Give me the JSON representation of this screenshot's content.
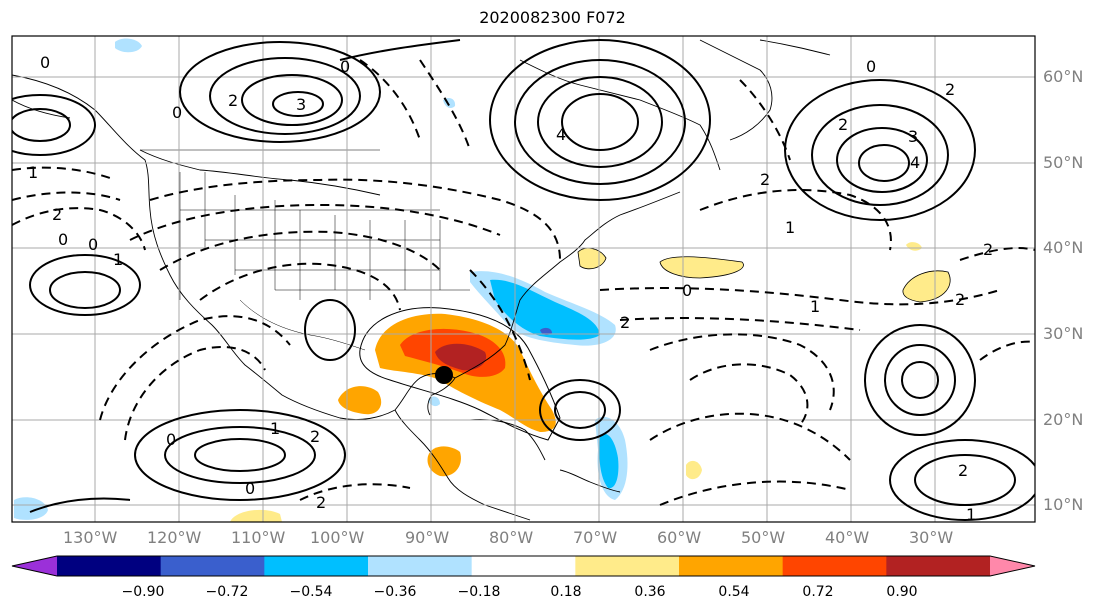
{
  "title": "2020082300 F072",
  "map": {
    "projection": "cylindrical",
    "lon_range": [
      -138,
      -15
    ],
    "lat_range": [
      8,
      65
    ],
    "grid": true,
    "longitude_labels": [
      "130°W",
      "120°W",
      "110°W",
      "100°W",
      "90°W",
      "80°W",
      "70°W",
      "60°W",
      "50°W",
      "40°W",
      "30°W"
    ],
    "latitude_labels": [
      "10°N",
      "20°N",
      "30°N",
      "40°N",
      "50°N",
      "60°N"
    ],
    "storm_marker": {
      "lon": -89,
      "lat": 26,
      "color": "#000000"
    }
  },
  "contour_labels": [
    "0",
    "0",
    "0",
    "0",
    "0",
    "0",
    "0",
    "0",
    "0",
    "1",
    "1",
    "1",
    "1",
    "1",
    "1",
    "2",
    "2",
    "2",
    "2",
    "2",
    "2",
    "2",
    "2",
    "2",
    "2",
    "2",
    "3",
    "3",
    "4",
    "4"
  ],
  "colorbar": {
    "ticks": [
      "−0.90",
      "−0.72",
      "−0.54",
      "−0.36",
      "−0.18",
      "0.18",
      "0.36",
      "0.54",
      "0.72",
      "0.90"
    ],
    "colors": [
      "#9b30d9",
      "#000080",
      "#3a5fcd",
      "#00bfff",
      "#b0e2ff",
      "#ffffff",
      "#ffeb8a",
      "#ffa500",
      "#ff4500",
      "#b22222",
      "#ff88aa"
    ]
  }
}
